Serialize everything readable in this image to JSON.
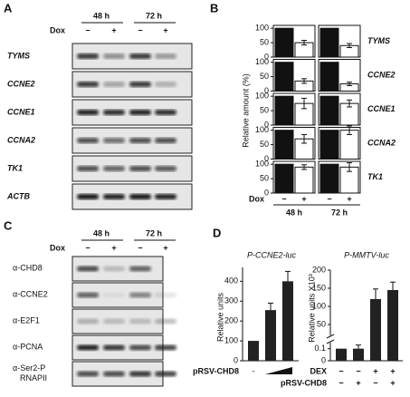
{
  "panel_a": {
    "letter": "A",
    "groups": [
      "48 h",
      "72 h"
    ],
    "dox": "Dox",
    "signs": [
      "−",
      "+",
      "−",
      "+"
    ],
    "genes": [
      "TYMS",
      "CCNE2",
      "CCNE1",
      "CCNA2",
      "TK1",
      "ACTB"
    ]
  },
  "panel_b": {
    "letter": "B",
    "ylabel": "Relative amount (%)",
    "dox": "Dox",
    "signs": [
      "−",
      "+",
      "−",
      "+"
    ],
    "groups": [
      "48 h",
      "72 h"
    ]
  },
  "panel_c": {
    "letter": "C",
    "groups": [
      "48 h",
      "72 h"
    ],
    "dox": "Dox",
    "signs": [
      "−",
      "+",
      "−",
      "+"
    ],
    "antibodies": [
      "α-CHD8",
      "α-CCNE2",
      "α-E2F1",
      "α-PCNA",
      "α-Ser2-P RNAPII"
    ]
  },
  "panel_d": {
    "letter": "D"
  },
  "chart_data": [
    {
      "type": "bar",
      "label": "TYMS",
      "values": [
        100,
        50,
        100,
        40
      ],
      "errors": [
        0,
        8,
        0,
        7
      ],
      "colors": [
        "#111111",
        "#ffffff",
        "#111111",
        "#ffffff"
      ],
      "ylim": [
        0,
        110
      ],
      "yticks": [
        0,
        50,
        100
      ]
    },
    {
      "type": "bar",
      "label": "CCNE2",
      "values": [
        100,
        35,
        100,
        25
      ],
      "errors": [
        0,
        8,
        0,
        6
      ],
      "colors": [
        "#111111",
        "#ffffff",
        "#111111",
        "#ffffff"
      ],
      "ylim": [
        0,
        110
      ],
      "yticks": [
        0,
        50,
        100
      ]
    },
    {
      "type": "bar",
      "label": "CCNE1",
      "values": [
        100,
        75,
        100,
        75
      ],
      "errors": [
        0,
        18,
        0,
        12
      ],
      "colors": [
        "#111111",
        "#ffffff",
        "#111111",
        "#ffffff"
      ],
      "ylim": [
        0,
        110
      ],
      "yticks": [
        0,
        50,
        100
      ]
    },
    {
      "type": "bar",
      "label": "CCNA2",
      "values": [
        100,
        70,
        100,
        100
      ],
      "errors": [
        0,
        15,
        0,
        15
      ],
      "colors": [
        "#111111",
        "#ffffff",
        "#111111",
        "#ffffff"
      ],
      "ylim": [
        0,
        110
      ],
      "yticks": [
        0,
        50,
        100
      ]
    },
    {
      "type": "bar",
      "label": "TK1",
      "values": [
        100,
        90,
        100,
        90
      ],
      "errors": [
        0,
        8,
        0,
        15
      ],
      "colors": [
        "#111111",
        "#ffffff",
        "#111111",
        "#ffffff"
      ],
      "ylim": [
        0,
        110
      ],
      "yticks": [
        0,
        50,
        100
      ]
    },
    {
      "type": "bar",
      "title": "P-CCNE2-luc",
      "ylabel": "Relative units",
      "xlabel": "pRSV-CHD8",
      "categories": [
        "-",
        null,
        null
      ],
      "values": [
        100,
        255,
        400
      ],
      "errors": [
        0,
        35,
        50
      ],
      "color": "#222222",
      "ylim": [
        0,
        470
      ],
      "yticks": [
        0,
        100,
        200,
        300,
        400
      ]
    },
    {
      "type": "bar",
      "title": "P-MMTV-luc",
      "ylabel": "Relative units X10³",
      "rows": [
        {
          "label": "DEX",
          "signs": [
            "−",
            "−",
            "+",
            "+"
          ]
        },
        {
          "label": "pRSV-CHD8",
          "signs": [
            "−",
            "+",
            "−",
            "+"
          ]
        }
      ],
      "values": [
        0.1,
        0.1,
        120,
        145
      ],
      "errors": [
        0,
        0.03,
        28,
        22
      ],
      "color": "#222222",
      "ylim": [
        0,
        200
      ],
      "ybreak": [
        0.15,
        20
      ],
      "yticks": [
        0,
        0.1,
        50,
        100,
        150,
        200
      ]
    }
  ]
}
